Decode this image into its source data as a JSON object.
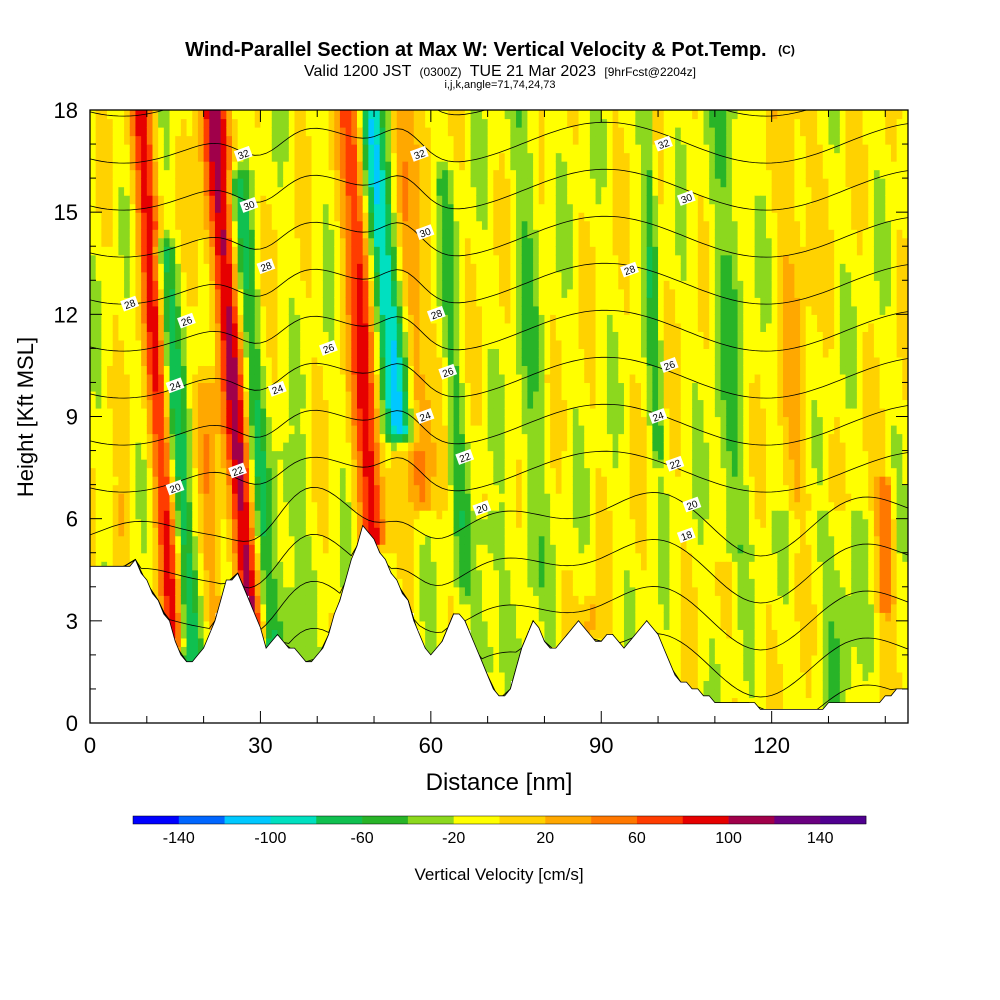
{
  "chart_data": {
    "type": "heatmap",
    "title": "Wind-Parallel Section at Max W: Vertical Velocity & Pot.Temp.",
    "title_mark": "(C)",
    "subtitle": {
      "prefix": "Valid 1200 JST",
      "utc": "(0300Z)",
      "date": "TUE 21 Mar 2023",
      "forecast": "[9hrFcst@2204z]"
    },
    "params": "i,j,k,angle=71,74,24,73",
    "xlabel": "Distance [nm]",
    "ylabel": "Height [Kft MSL]",
    "xlim": [
      0,
      144
    ],
    "ylim": [
      0,
      18
    ],
    "x_ticks": [
      0,
      30,
      60,
      90,
      120
    ],
    "y_ticks": [
      0,
      3,
      6,
      9,
      12,
      15,
      18
    ],
    "colorbar": {
      "label": "Vertical Velocity [cm/s]",
      "levels": [
        -160,
        -140,
        -120,
        -100,
        -80,
        -60,
        -40,
        -20,
        0,
        20,
        40,
        60,
        80,
        100,
        120,
        140,
        160
      ],
      "tick_labels": [
        -140,
        -100,
        -60,
        -20,
        20,
        60,
        100,
        140
      ],
      "colors": [
        "#0000ff",
        "#0066ff",
        "#00c8ff",
        "#00e0c0",
        "#10c050",
        "#28b428",
        "#8cd81e",
        "#ffff00",
        "#ffd200",
        "#ffa800",
        "#ff7800",
        "#ff3c00",
        "#e60000",
        "#a0004a",
        "#6a0080",
        "#500090"
      ]
    },
    "terrain_top_kft": [
      [
        0,
        4.5
      ],
      [
        6,
        4.6
      ],
      [
        8,
        4.8
      ],
      [
        10,
        4.1
      ],
      [
        12,
        3.6
      ],
      [
        14,
        2.9
      ],
      [
        15,
        2.3
      ],
      [
        17,
        1.8
      ],
      [
        18,
        1.7
      ],
      [
        20,
        2.1
      ],
      [
        22,
        3.0
      ],
      [
        24,
        4.1
      ],
      [
        26,
        4.4
      ],
      [
        28,
        3.6
      ],
      [
        30,
        2.7
      ],
      [
        31,
        2.2
      ],
      [
        33,
        2.5
      ],
      [
        36,
        2.1
      ],
      [
        38,
        1.8
      ],
      [
        40,
        1.9
      ],
      [
        42,
        2.6
      ],
      [
        44,
        3.6
      ],
      [
        46,
        4.7
      ],
      [
        48,
        5.7
      ],
      [
        50,
        5.3
      ],
      [
        52,
        4.7
      ],
      [
        54,
        4.1
      ],
      [
        56,
        3.6
      ],
      [
        58,
        2.5
      ],
      [
        60,
        1.9
      ],
      [
        62,
        2.4
      ],
      [
        64,
        3.2
      ],
      [
        66,
        3.0
      ],
      [
        68,
        2.1
      ],
      [
        70,
        1.4
      ],
      [
        72,
        0.7
      ],
      [
        74,
        1.0
      ],
      [
        76,
        2.2
      ],
      [
        78,
        3.0
      ],
      [
        80,
        2.4
      ],
      [
        82,
        2.1
      ],
      [
        84,
        2.6
      ],
      [
        86,
        2.9
      ],
      [
        88,
        2.5
      ],
      [
        90,
        2.4
      ],
      [
        92,
        2.6
      ],
      [
        94,
        2.1
      ],
      [
        96,
        2.5
      ],
      [
        98,
        3.0
      ],
      [
        100,
        2.5
      ],
      [
        102,
        1.7
      ],
      [
        104,
        1.2
      ],
      [
        106,
        1.0
      ],
      [
        110,
        0.6
      ],
      [
        116,
        0.6
      ],
      [
        120,
        0.3
      ],
      [
        126,
        0.3
      ],
      [
        132,
        0.6
      ],
      [
        140,
        0.7
      ],
      [
        142,
        1.0
      ],
      [
        144,
        1.0
      ]
    ],
    "features": [
      {
        "x": 15.0,
        "y_top": 18,
        "y_bottom": 2.3,
        "tilt": -0.38,
        "width": 5.5,
        "w": 90
      },
      {
        "x": 17.5,
        "y_top": 14,
        "y_bottom": 2.0,
        "tilt": -0.38,
        "width": 5.0,
        "w": -70
      },
      {
        "x": 28.5,
        "y_top": 18,
        "y_bottom": 2.6,
        "tilt": -0.45,
        "width": 6.5,
        "w": 110
      },
      {
        "x": 31.5,
        "y_top": 16,
        "y_bottom": 2.3,
        "tilt": -0.42,
        "width": 5.0,
        "w": -60
      },
      {
        "x": 50.0,
        "y_top": 18,
        "y_bottom": 5.4,
        "tilt": -0.3,
        "width": 6.0,
        "w": 100
      },
      {
        "x": 54.5,
        "y_top": 18,
        "y_bottom": 8.5,
        "tilt": -0.55,
        "width": 6.5,
        "w": -110
      },
      {
        "x": 58.5,
        "y_top": 18,
        "y_bottom": 6.5,
        "tilt": -0.35,
        "width": 5.0,
        "w": 60
      },
      {
        "x": 66.0,
        "y_top": 16,
        "y_bottom": 4.0,
        "tilt": -0.3,
        "width": 4.0,
        "w": -30
      },
      {
        "x": 100.0,
        "y_top": 18,
        "y_bottom": 8.0,
        "tilt": -0.2,
        "width": 3.0,
        "w": -40
      },
      {
        "x": 22.0,
        "y_top": 10,
        "y_bottom": 3.0,
        "tilt": -0.2,
        "width": 4.0,
        "w": 35
      },
      {
        "x": 35.0,
        "y_top": 8,
        "y_bottom": 2.0,
        "tilt": 0.0,
        "width": 6.0,
        "w": -30
      },
      {
        "x": 70.0,
        "y_top": 6,
        "y_bottom": 1.5,
        "tilt": 0.0,
        "width": 6.0,
        "w": -30
      },
      {
        "x": 78.0,
        "y_top": 18,
        "y_bottom": 4.0,
        "tilt": -0.1,
        "width": 6.0,
        "w": -25
      },
      {
        "x": 113.0,
        "y_top": 18,
        "y_bottom": 5.0,
        "tilt": -0.05,
        "width": 8.0,
        "w": -28
      },
      {
        "x": 124.0,
        "y_top": 18,
        "y_bottom": 6.5,
        "tilt": 0.0,
        "width": 8.0,
        "w": 25
      },
      {
        "x": 140.0,
        "y_top": 7,
        "y_bottom": 3.5,
        "tilt": 0.0,
        "width": 4.0,
        "w": 60
      },
      {
        "x": 132.0,
        "y_top": 6,
        "y_bottom": 0.5,
        "tilt": 0.0,
        "width": 8.0,
        "w": -25
      },
      {
        "x": 88.0,
        "y_top": 3.5,
        "y_bottom": 2.2,
        "tilt": 0.0,
        "width": 3.0,
        "w": 40
      },
      {
        "x": 5.0,
        "y_top": 6.5,
        "y_bottom": 4.6,
        "tilt": 0.0,
        "width": 4.0,
        "w": 30
      }
    ],
    "background_w": -8,
    "theta_contours": [
      {
        "value": 32,
        "labels": [
          [
            "x",
            27,
            "y",
            16.7
          ],
          [
            "x",
            58,
            "y",
            16.7
          ],
          [
            "x",
            101,
            "y",
            17.0
          ]
        ]
      },
      {
        "value": 30,
        "labels": [
          [
            "x",
            28,
            "y",
            15.2
          ],
          [
            "x",
            59,
            "y",
            14.4
          ],
          [
            "x",
            105,
            "y",
            15.4
          ]
        ]
      },
      {
        "value": 28,
        "labels": [
          [
            "x",
            7,
            "y",
            12.3
          ],
          [
            "x",
            31,
            "y",
            13.4
          ],
          [
            "x",
            61,
            "y",
            12.0
          ],
          [
            "x",
            95,
            "y",
            13.3
          ]
        ]
      },
      {
        "value": 26,
        "labels": [
          [
            "x",
            17,
            "y",
            11.8
          ],
          [
            "x",
            42,
            "y",
            11.0
          ],
          [
            "x",
            63,
            "y",
            10.3
          ],
          [
            "x",
            102,
            "y",
            10.5
          ]
        ]
      },
      {
        "value": 24,
        "labels": [
          [
            "x",
            15,
            "y",
            9.9
          ],
          [
            "x",
            33,
            "y",
            9.8
          ],
          [
            "x",
            59,
            "y",
            9.0
          ],
          [
            "x",
            100,
            "y",
            9.0
          ]
        ]
      },
      {
        "value": 22,
        "labels": [
          [
            "x",
            26,
            "y",
            7.4
          ],
          [
            "x",
            66,
            "y",
            7.8
          ],
          [
            "x",
            103,
            "y",
            7.6
          ]
        ]
      },
      {
        "value": 20,
        "labels": [
          [
            "x",
            15,
            "y",
            6.9
          ],
          [
            "x",
            69,
            "y",
            6.3
          ],
          [
            "x",
            106,
            "y",
            6.4
          ]
        ]
      },
      {
        "value": 18,
        "labels": [
          [
            "x",
            105,
            "y",
            5.5
          ]
        ]
      }
    ]
  }
}
